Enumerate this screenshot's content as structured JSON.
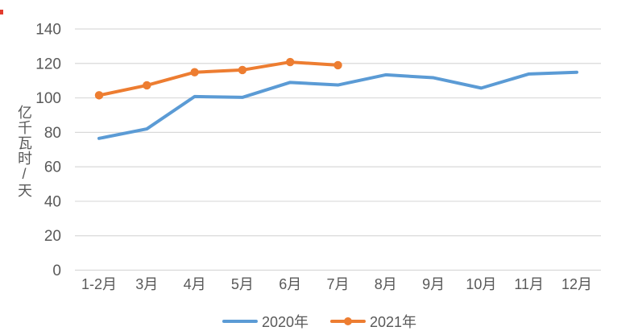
{
  "page": {
    "background": "#FFFFFF"
  },
  "chart_data": {
    "type": "line",
    "title": "",
    "xlabel": "",
    "ylabel": "亿千瓦时/天",
    "categories": [
      "1-2月",
      "3月",
      "4月",
      "5月",
      "6月",
      "7月",
      "8月",
      "9月",
      "10月",
      "11月",
      "12月"
    ],
    "series": [
      {
        "name": "2020年",
        "color": "#5B9BD5",
        "marker": "none",
        "values": [
          76.5,
          82,
          100.8,
          100.3,
          109,
          107.5,
          113.4,
          111.7,
          105.7,
          113.9,
          114.9
        ]
      },
      {
        "name": "2021年",
        "color": "#ED7D31",
        "marker": "circle",
        "values": [
          101.5,
          107.3,
          114.9,
          116.2,
          120.8,
          119
        ]
      }
    ],
    "ylim": [
      0,
      140
    ],
    "ytick_step": 20,
    "yticks": [
      0,
      20,
      40,
      60,
      80,
      100,
      120,
      140
    ],
    "grid": true,
    "legend_position": "bottom",
    "axis_text_color": "#595959",
    "gridline_color": "#D9D9D9"
  }
}
